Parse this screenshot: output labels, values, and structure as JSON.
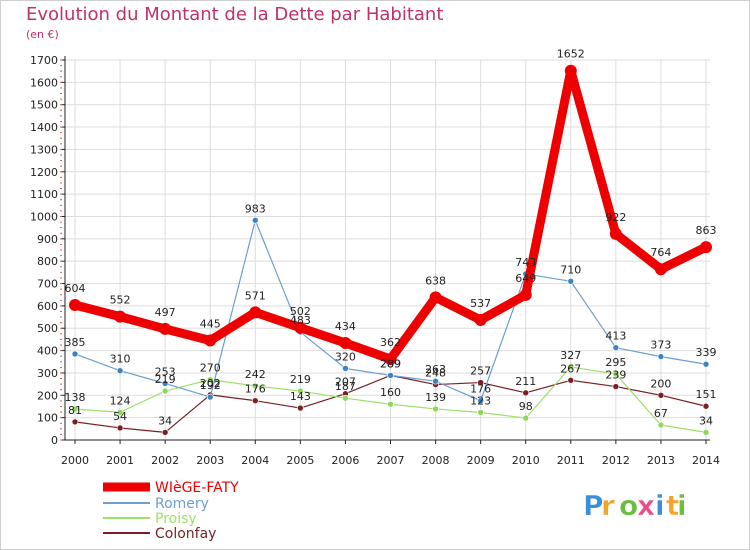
{
  "title": "Evolution du Montant de la Dette par Habitant",
  "unit_label": "(en €)",
  "logo_text": "Proxiti",
  "colors": {
    "title": "#c0306a",
    "grid": "#dddddd",
    "axis": "#222222"
  },
  "chart_data": {
    "type": "line",
    "x": [
      "2000",
      "2001",
      "2002",
      "2003",
      "2004",
      "2005",
      "2006",
      "2007",
      "2008",
      "2009",
      "2010",
      "2011",
      "2012",
      "2013",
      "2014"
    ],
    "ylim": [
      0,
      1700
    ],
    "yticks": [
      0,
      100,
      200,
      300,
      400,
      500,
      600,
      700,
      800,
      900,
      1000,
      1100,
      1200,
      1300,
      1400,
      1500,
      1600,
      1700
    ],
    "grid": true,
    "legend_position": "bottom-left",
    "series": [
      {
        "name": "Colonfay",
        "color": "#7a1f24",
        "marker": "#7a1f24",
        "width": 1.2,
        "r": 3,
        "values": [
          81,
          54,
          34,
          202,
          176,
          143,
          207,
          289,
          248,
          257,
          211,
          267,
          239,
          200,
          151
        ]
      },
      {
        "name": "Proisy",
        "color": "#9ee06a",
        "marker": "#8ed85a",
        "width": 1.2,
        "r": 3,
        "values": [
          138,
          124,
          219,
          270,
          242,
          219,
          187,
          160,
          139,
          123,
          98,
          327,
          295,
          67,
          34
        ]
      },
      {
        "name": "Romery",
        "color": "#6a9fd0",
        "marker": "#3b84c4",
        "width": 1.2,
        "r": 3,
        "values": [
          385,
          310,
          253,
          192,
          983,
          483,
          320,
          289,
          263,
          176,
          743,
          710,
          413,
          373,
          339
        ]
      },
      {
        "name": "WIèGE-FATY",
        "color": "#ee0000",
        "marker": "#ee0000",
        "width": 9,
        "r": 6,
        "values": [
          604,
          552,
          497,
          445,
          571,
          502,
          434,
          362,
          638,
          537,
          649,
          1652,
          922,
          764,
          863
        ]
      }
    ],
    "legend_order": [
      "WIèGE-FATY",
      "Romery",
      "Proisy",
      "Colonfay"
    ],
    "data_labels": [
      {
        "series": "Romery",
        "values": [
          "385",
          "310",
          "253",
          "192",
          "983",
          "483",
          "320",
          "289",
          "263",
          "176",
          "743",
          "710",
          "413",
          "373",
          "339"
        ]
      },
      {
        "series": "Proisy",
        "values": [
          "138",
          "124",
          "219",
          "270",
          "242",
          "219",
          "187",
          "160",
          "139",
          "123",
          "98",
          "327",
          "295",
          "67",
          "34"
        ]
      },
      {
        "series": "Colonfay",
        "values": [
          "81",
          "54",
          "34",
          "202",
          "176",
          "143",
          "207",
          "289",
          "248",
          "257",
          "211",
          "267",
          "239",
          "200",
          "151"
        ]
      },
      {
        "series": "WIèGE-FATY",
        "values": [
          "604",
          "552",
          "497",
          "445",
          "571",
          "502",
          "434",
          "362",
          "638",
          "537",
          "649",
          "1652",
          "922",
          "764",
          "863"
        ]
      }
    ]
  }
}
